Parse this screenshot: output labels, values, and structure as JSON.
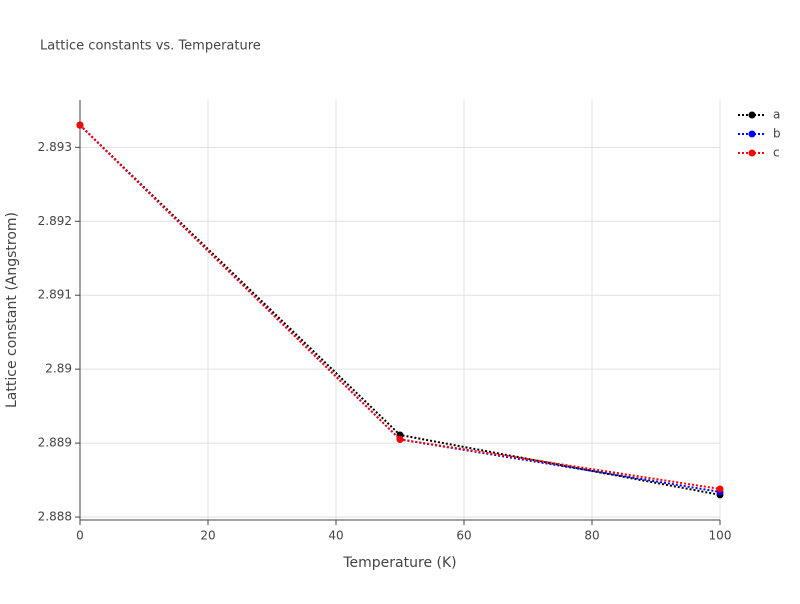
{
  "chart_data": {
    "type": "line",
    "title": "Lattice constants vs. Temperature",
    "x_label": "Temperature (K)",
    "y_label": "Lattice constant (Angstrom)",
    "x": [
      0,
      50,
      100
    ],
    "series": [
      {
        "name": "a",
        "color": "#000000",
        "values": [
          2.8933,
          2.88911,
          2.8883
        ]
      },
      {
        "name": "b",
        "color": "#0000ff",
        "values": [
          2.8933,
          2.88905,
          2.88834
        ]
      },
      {
        "name": "c",
        "color": "#ff0000",
        "values": [
          2.8933,
          2.88905,
          2.88838
        ]
      }
    ],
    "xlim": [
      0,
      100
    ],
    "xticks": [
      0,
      20,
      40,
      60,
      80,
      100
    ],
    "ylim": [
      2.88796,
      2.89364
    ],
    "yticks": [
      2.888,
      2.889,
      2.89,
      2.891,
      2.892,
      2.893
    ],
    "grid": true,
    "legend": "top-right"
  }
}
